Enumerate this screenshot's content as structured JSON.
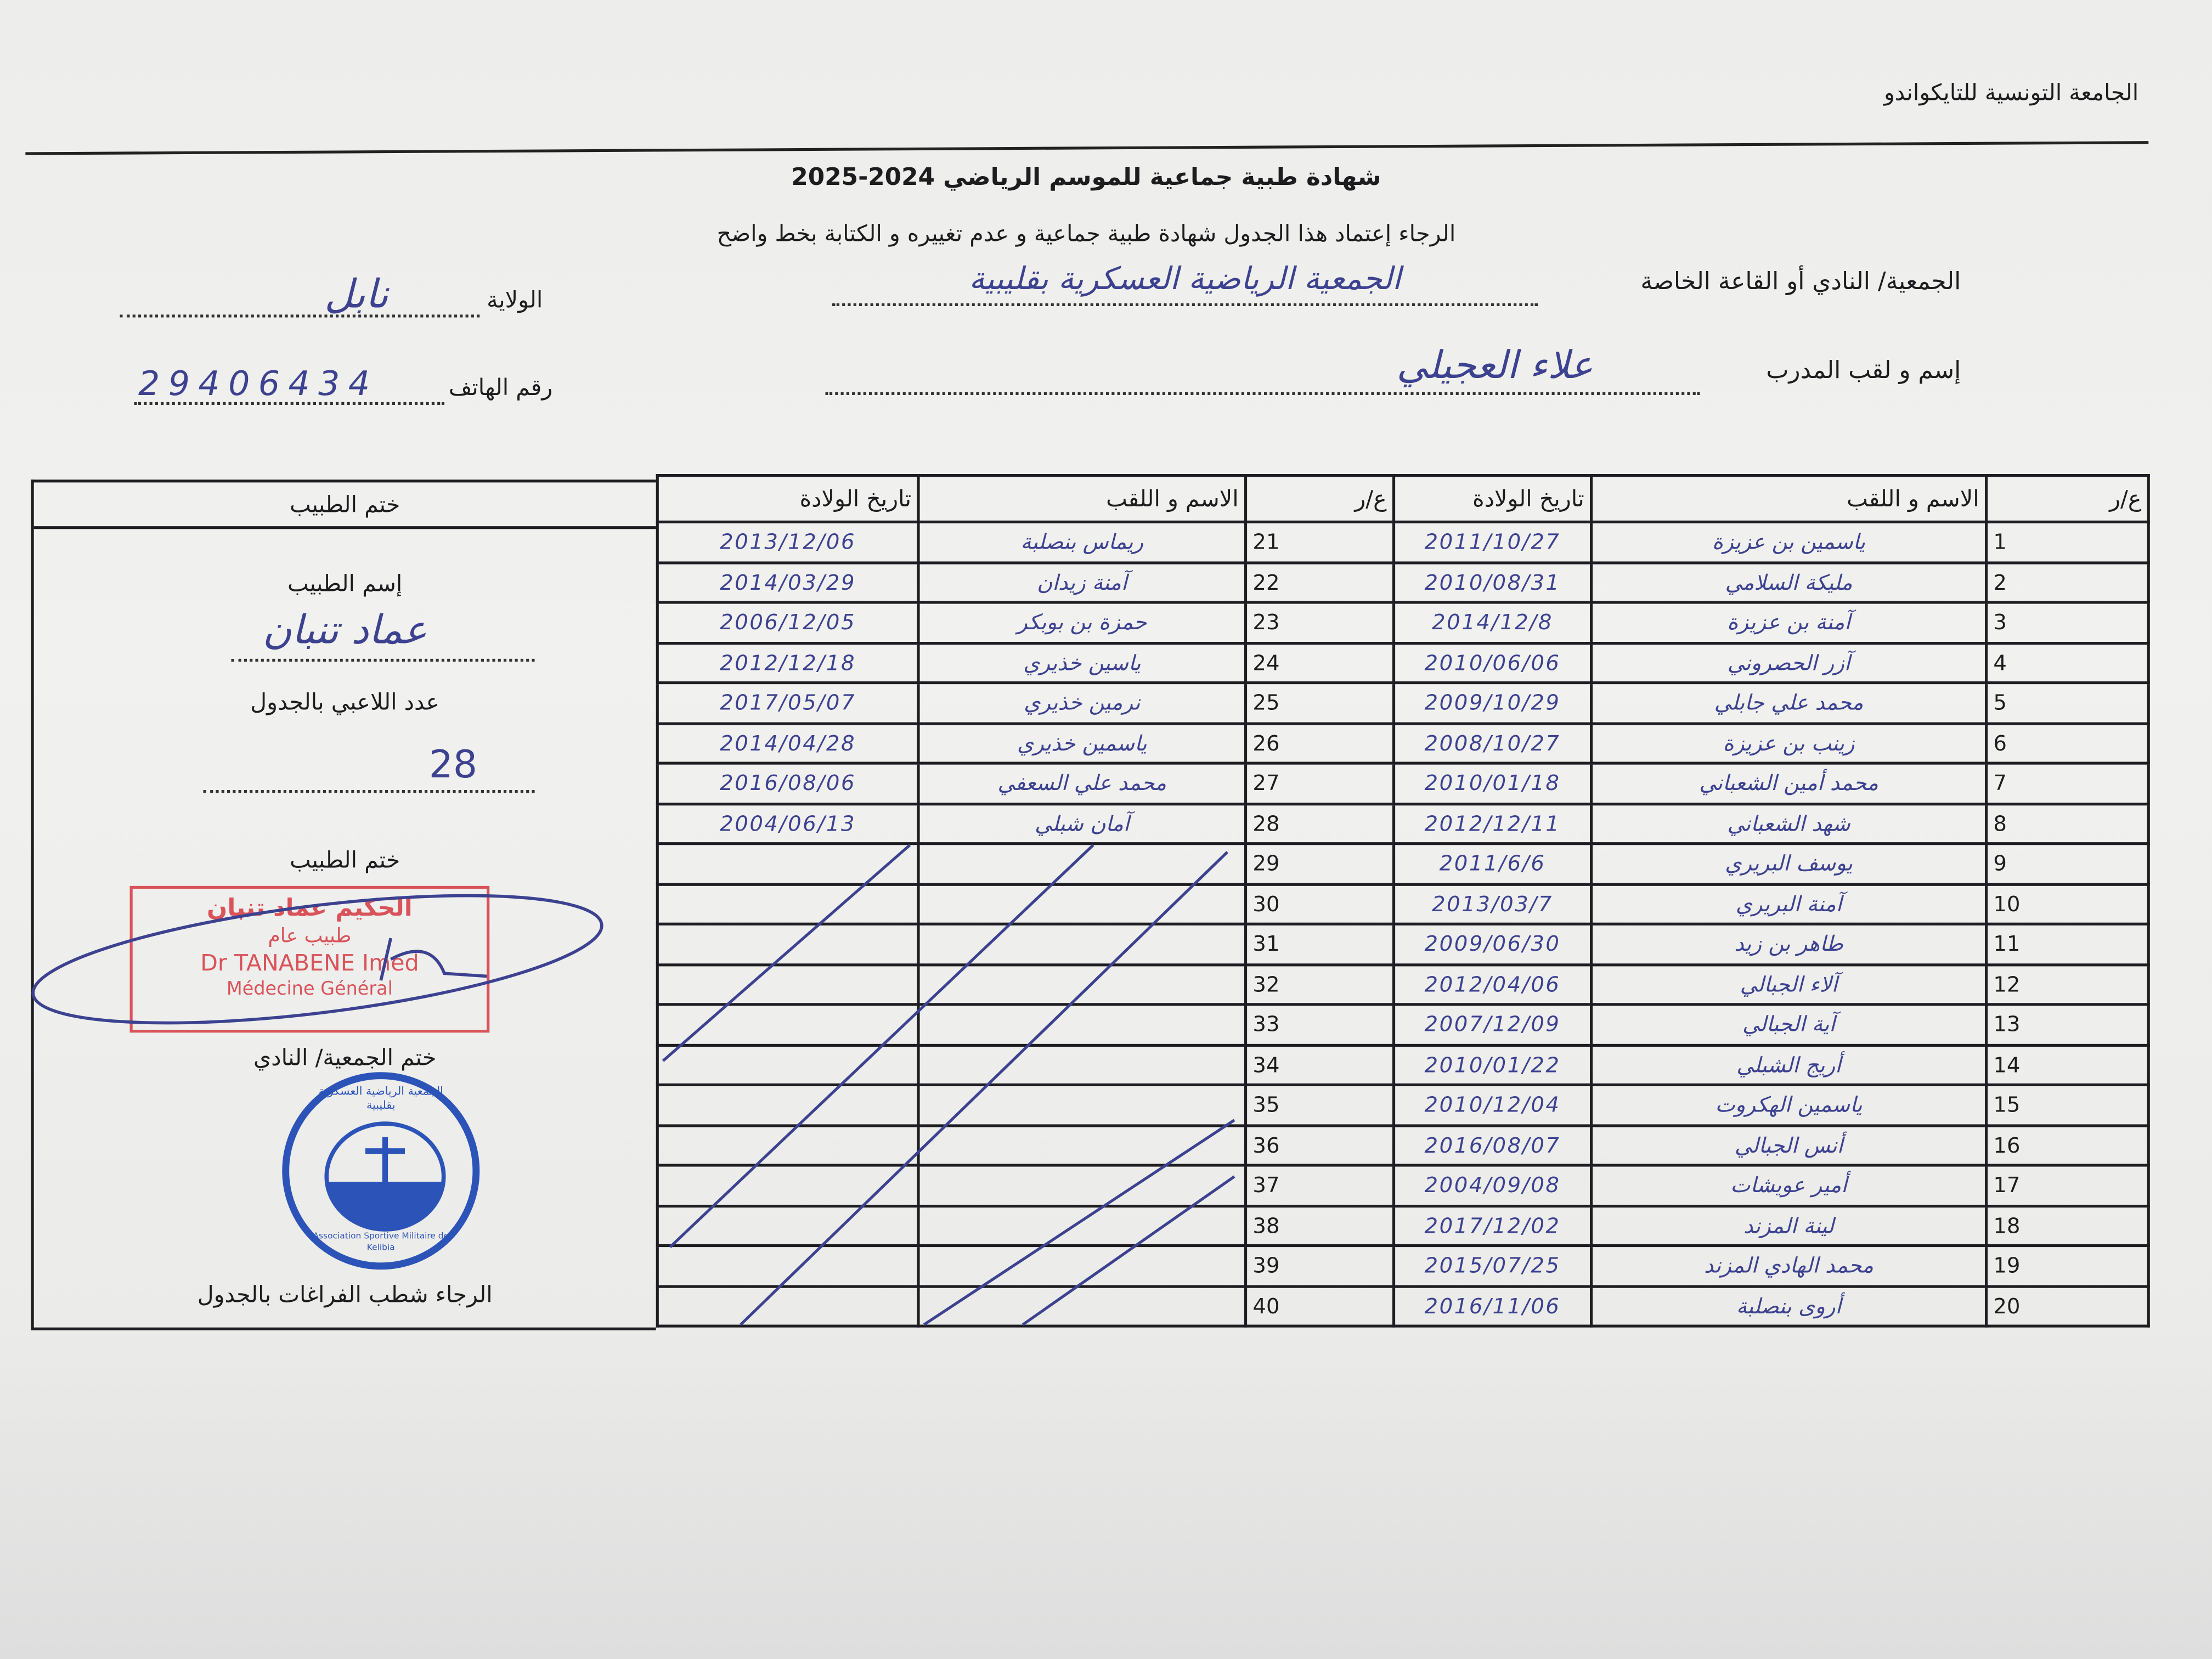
{
  "federation": "الجامعة التونسية للتايكواندو",
  "title": "شهادة طبية جماعية للموسم الرياضي 2024-2025",
  "instruction": "الرجاء إعتماد هذا الجدول شهادة طبية جماعية  و عدم تغييره و الكتابة بخط واضح",
  "club": {
    "label": "الجمعية/ النادي أو القاعة الخاصة",
    "value": "الجمعية الرياضية العسكرية بقليبية"
  },
  "wilaya": {
    "label": "الولاية",
    "value": "نابل"
  },
  "coach": {
    "label": "إسم و لقب المدرب",
    "value": "علاء العجيلي"
  },
  "phone": {
    "label": "رقم الهاتف",
    "value": "29406434"
  },
  "table": {
    "headers": {
      "num": "ع/ر",
      "name": "الاسم و اللقب",
      "dob": "تاريخ الولادة"
    },
    "right_rows": [
      {
        "num": "1",
        "name": "ياسمين بن عزيزة",
        "dob": "2011/10/27"
      },
      {
        "num": "2",
        "name": "مليكة السلامي",
        "dob": "2010/08/31"
      },
      {
        "num": "3",
        "name": "آمنة بن عزيزة",
        "dob": "2014/12/8"
      },
      {
        "num": "4",
        "name": "آزر الحصروني",
        "dob": "2010/06/06"
      },
      {
        "num": "5",
        "name": "محمد علي جابلي",
        "dob": "2009/10/29"
      },
      {
        "num": "6",
        "name": "زينب بن عزيزة",
        "dob": "2008/10/27"
      },
      {
        "num": "7",
        "name": "محمد أمين الشعباني",
        "dob": "2010/01/18"
      },
      {
        "num": "8",
        "name": "شهد الشعباني",
        "dob": "2012/12/11"
      },
      {
        "num": "9",
        "name": "يوسف البريري",
        "dob": "2011/6/6"
      },
      {
        "num": "10",
        "name": "آمنة البريري",
        "dob": "2013/03/7"
      },
      {
        "num": "11",
        "name": "طاهر بن زيد",
        "dob": "2009/06/30"
      },
      {
        "num": "12",
        "name": "آلاء الجبالي",
        "dob": "2012/04/06"
      },
      {
        "num": "13",
        "name": "آية الجبالي",
        "dob": "2007/12/09"
      },
      {
        "num": "14",
        "name": "أريج الشبلي",
        "dob": "2010/01/22"
      },
      {
        "num": "15",
        "name": "ياسمين الهكروت",
        "dob": "2010/12/04"
      },
      {
        "num": "16",
        "name": "أنس الجبالي",
        "dob": "2016/08/07"
      },
      {
        "num": "17",
        "name": "أمير عويشات",
        "dob": "2004/09/08"
      },
      {
        "num": "18",
        "name": "لينة المزند",
        "dob": "2017/12/02"
      },
      {
        "num": "19",
        "name": "محمد الهادي المزند",
        "dob": "2015/07/25"
      },
      {
        "num": "20",
        "name": "أروى بنصلبة",
        "dob": "2016/11/06"
      }
    ],
    "left_rows": [
      {
        "num": "21",
        "name": "ريماس بنصلبة",
        "dob": "2013/12/06"
      },
      {
        "num": "22",
        "name": "آمنة زيدان",
        "dob": "2014/03/29"
      },
      {
        "num": "23",
        "name": "حمزة بن بوبكر",
        "dob": "2006/12/05"
      },
      {
        "num": "24",
        "name": "ياسين خذيري",
        "dob": "2012/12/18"
      },
      {
        "num": "25",
        "name": "نرمين خذيري",
        "dob": "2017/05/07"
      },
      {
        "num": "26",
        "name": "ياسمين خذيري",
        "dob": "2014/04/28"
      },
      {
        "num": "27",
        "name": "محمد علي السعفي",
        "dob": "2016/08/06"
      },
      {
        "num": "28",
        "name": "آمان شبلي",
        "dob": "2004/06/13"
      },
      {
        "num": "29",
        "name": "",
        "dob": ""
      },
      {
        "num": "30",
        "name": "",
        "dob": ""
      },
      {
        "num": "31",
        "name": "",
        "dob": ""
      },
      {
        "num": "32",
        "name": "",
        "dob": ""
      },
      {
        "num": "33",
        "name": "",
        "dob": ""
      },
      {
        "num": "34",
        "name": "",
        "dob": ""
      },
      {
        "num": "35",
        "name": "",
        "dob": ""
      },
      {
        "num": "36",
        "name": "",
        "dob": ""
      },
      {
        "num": "37",
        "name": "",
        "dob": ""
      },
      {
        "num": "38",
        "name": "",
        "dob": ""
      },
      {
        "num": "39",
        "name": "",
        "dob": ""
      },
      {
        "num": "40",
        "name": "",
        "dob": ""
      }
    ]
  },
  "doctor_panel": {
    "header": "ختم الطبيب",
    "name_label": "إسم الطبيب",
    "name_value": "عماد تنبان",
    "count_label": "عدد اللاعبي بالجدول",
    "count_value": "28",
    "stamp_label": "ختم الطبيب",
    "club_stamp_label": "ختم الجمعية/ النادي",
    "footer_note": "الرجاء شطب الفراغات بالجدول"
  },
  "stamps": {
    "doctor": {
      "line1": "الحكيم عماد تنبان",
      "line2": "طبيب عام",
      "line3": "Dr TANABENE Imed",
      "line4": "Médecine Général",
      "color": "#d9535a"
    },
    "club": {
      "arabic": "الجمعية الرياضية العسكرية بقليبية",
      "latin": "Association Sportive Militaire de Kelibia",
      "color": "#2c54b8"
    }
  },
  "ink_color": "#3c4290"
}
